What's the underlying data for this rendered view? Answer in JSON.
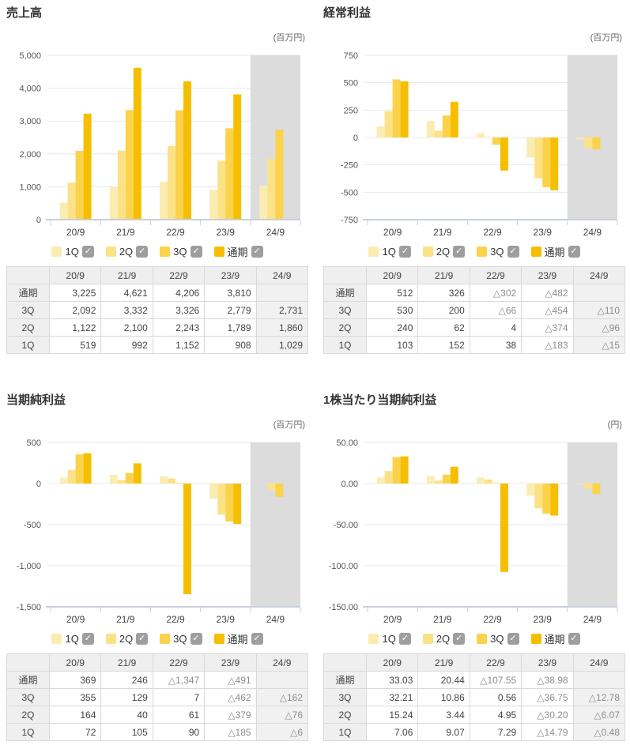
{
  "colors": {
    "series": [
      "#FBEDB2",
      "#FCE287",
      "#FCD24A",
      "#F5BF00"
    ],
    "band": "#DCDCDC",
    "grid": "#E8E8E8",
    "axis": "#C7CFDB",
    "checkbox": "#9E9E9E",
    "text_primary": "#333333",
    "text_secondary": "#666666",
    "negative_text": "#8C8C8C",
    "table_header_bg": "#EFEFEF",
    "table_future_bg": "#F1F1F1",
    "table_border": "#D9D9D9"
  },
  "icons": {
    "checkbox_check": "✓"
  },
  "legend": {
    "items": [
      {
        "key": "1q",
        "label": "1Q",
        "checked": true
      },
      {
        "key": "2q",
        "label": "2Q",
        "checked": true
      },
      {
        "key": "3q",
        "label": "3Q",
        "checked": true
      },
      {
        "key": "full-year",
        "label": "通期",
        "checked": true
      }
    ]
  },
  "chart_data": [
    {
      "type": "bar",
      "title": "売上高",
      "unit": "(百万円)",
      "categories": [
        "20/9",
        "21/9",
        "22/9",
        "23/9",
        "24/9"
      ],
      "series": [
        {
          "name": "1Q",
          "values": [
            519,
            992,
            1152,
            908,
            1029
          ]
        },
        {
          "name": "2Q",
          "values": [
            1122,
            2100,
            2243,
            1789,
            1860
          ]
        },
        {
          "name": "3Q",
          "values": [
            2092,
            3332,
            3326,
            2779,
            2731
          ]
        },
        {
          "name": "通期",
          "values": [
            3225,
            4621,
            4206,
            3810,
            null
          ]
        }
      ],
      "ylim": [
        0,
        5000
      ],
      "ytick_step": 1000,
      "ytick_labels": [
        "5,000",
        "4,000",
        "3,000",
        "2,000",
        "1,000",
        "0"
      ],
      "grid": true,
      "highlight_last_category": true,
      "legend_position": "bottom"
    },
    {
      "type": "bar",
      "title": "経常利益",
      "unit": "(百万円)",
      "categories": [
        "20/9",
        "21/9",
        "22/9",
        "23/9",
        "24/9"
      ],
      "series": [
        {
          "name": "1Q",
          "values": [
            103,
            152,
            38,
            -183,
            -15
          ]
        },
        {
          "name": "2Q",
          "values": [
            240,
            62,
            4,
            -374,
            -96
          ]
        },
        {
          "name": "3Q",
          "values": [
            530,
            200,
            -66,
            -454,
            -110
          ]
        },
        {
          "name": "通期",
          "values": [
            512,
            326,
            -302,
            -482,
            null
          ]
        }
      ],
      "ylim": [
        -750,
        750
      ],
      "ytick_step": 250,
      "ytick_labels": [
        "750",
        "500",
        "250",
        "0",
        "-250",
        "-500",
        "-750"
      ],
      "grid": true,
      "highlight_last_category": true,
      "legend_position": "bottom"
    },
    {
      "type": "bar",
      "title": "当期純利益",
      "unit": "(百万円)",
      "categories": [
        "20/9",
        "21/9",
        "22/9",
        "23/9",
        "24/9"
      ],
      "series": [
        {
          "name": "1Q",
          "values": [
            72,
            105,
            90,
            -185,
            -6
          ]
        },
        {
          "name": "2Q",
          "values": [
            164,
            40,
            61,
            -379,
            -76
          ]
        },
        {
          "name": "3Q",
          "values": [
            355,
            129,
            7,
            -462,
            -162
          ]
        },
        {
          "name": "通期",
          "values": [
            369,
            246,
            -1347,
            -491,
            null
          ]
        }
      ],
      "ylim": [
        -1500,
        500
      ],
      "ytick_step": 500,
      "ytick_labels": [
        "500",
        "0",
        "-500",
        "-1,000",
        "-1,500"
      ],
      "grid": true,
      "highlight_last_category": true,
      "legend_position": "bottom"
    },
    {
      "type": "bar",
      "title": "1株当たり当期純利益",
      "unit": "(円)",
      "categories": [
        "20/9",
        "21/9",
        "22/9",
        "23/9",
        "24/9"
      ],
      "series": [
        {
          "name": "1Q",
          "values": [
            7.06,
            9.07,
            7.29,
            -14.79,
            -0.48
          ]
        },
        {
          "name": "2Q",
          "values": [
            15.24,
            3.44,
            4.95,
            -30.2,
            -6.07
          ]
        },
        {
          "name": "3Q",
          "values": [
            32.21,
            10.86,
            0.56,
            -36.75,
            -12.78
          ]
        },
        {
          "name": "通期",
          "values": [
            33.03,
            20.44,
            -107.55,
            -38.98,
            null
          ]
        }
      ],
      "ylim": [
        -150,
        50
      ],
      "ytick_step": 50,
      "ytick_labels": [
        "50.00",
        "0.00",
        "-50.00",
        "-100.00",
        "-150.00"
      ],
      "grid": true,
      "highlight_last_category": true,
      "legend_position": "bottom"
    }
  ],
  "panels": [
    {
      "id": "sales",
      "table": {
        "col_headers": [
          "",
          "20/9",
          "21/9",
          "22/9",
          "23/9",
          "24/9"
        ],
        "rows": [
          {
            "label": "通期",
            "values": [
              "3,225",
              "4,621",
              "4,206",
              "3,810",
              ""
            ]
          },
          {
            "label": "3Q",
            "values": [
              "2,092",
              "3,332",
              "3,326",
              "2,779",
              "2,731"
            ]
          },
          {
            "label": "2Q",
            "values": [
              "1,122",
              "2,100",
              "2,243",
              "1,789",
              "1,860"
            ]
          },
          {
            "label": "1Q",
            "values": [
              "519",
              "992",
              "1,152",
              "908",
              "1,029"
            ]
          }
        ]
      }
    },
    {
      "id": "ordinary-income",
      "table": {
        "col_headers": [
          "",
          "20/9",
          "21/9",
          "22/9",
          "23/9",
          "24/9"
        ],
        "rows": [
          {
            "label": "通期",
            "values": [
              "512",
              "326",
              "△302",
              "△482",
              ""
            ]
          },
          {
            "label": "3Q",
            "values": [
              "530",
              "200",
              "△66",
              "△454",
              "△110"
            ]
          },
          {
            "label": "2Q",
            "values": [
              "240",
              "62",
              "4",
              "△374",
              "△96"
            ]
          },
          {
            "label": "1Q",
            "values": [
              "103",
              "152",
              "38",
              "△183",
              "△15"
            ]
          }
        ]
      }
    },
    {
      "id": "net-income",
      "table": {
        "col_headers": [
          "",
          "20/9",
          "21/9",
          "22/9",
          "23/9",
          "24/9"
        ],
        "rows": [
          {
            "label": "通期",
            "values": [
              "369",
              "246",
              "△1,347",
              "△491",
              ""
            ]
          },
          {
            "label": "3Q",
            "values": [
              "355",
              "129",
              "7",
              "△462",
              "△162"
            ]
          },
          {
            "label": "2Q",
            "values": [
              "164",
              "40",
              "61",
              "△379",
              "△76"
            ]
          },
          {
            "label": "1Q",
            "values": [
              "72",
              "105",
              "90",
              "△185",
              "△6"
            ]
          }
        ]
      }
    },
    {
      "id": "eps",
      "table": {
        "col_headers": [
          "",
          "20/9",
          "21/9",
          "22/9",
          "23/9",
          "24/9"
        ],
        "rows": [
          {
            "label": "通期",
            "values": [
              "33.03",
              "20.44",
              "△107.55",
              "△38.98",
              ""
            ]
          },
          {
            "label": "3Q",
            "values": [
              "32.21",
              "10.86",
              "0.56",
              "△36.75",
              "△12.78"
            ]
          },
          {
            "label": "2Q",
            "values": [
              "15.24",
              "3.44",
              "4.95",
              "△30.20",
              "△6.07"
            ]
          },
          {
            "label": "1Q",
            "values": [
              "7.06",
              "9.07",
              "7.29",
              "△14.79",
              "△0.48"
            ]
          }
        ]
      }
    }
  ]
}
